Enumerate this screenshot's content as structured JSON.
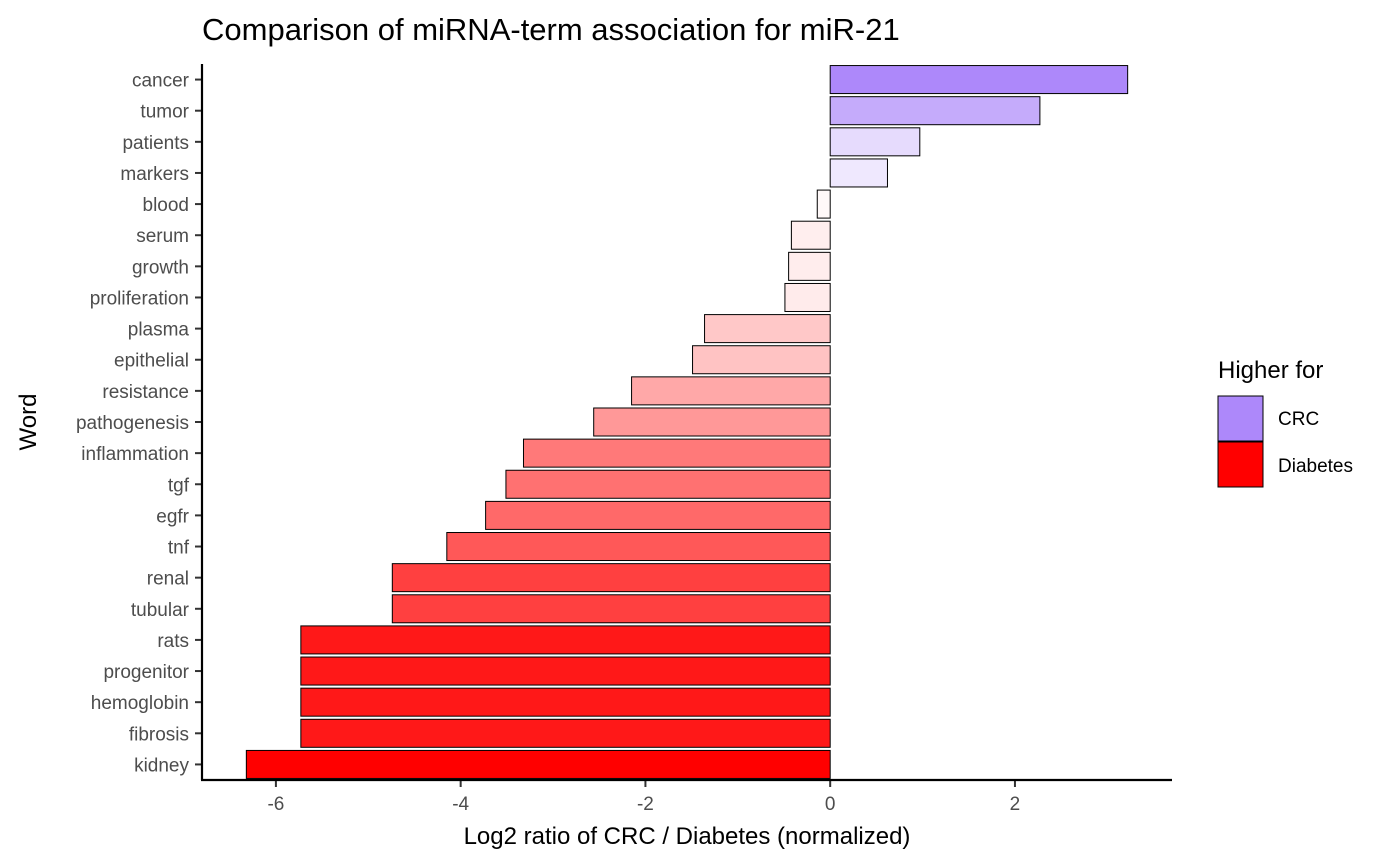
{
  "chart_data": {
    "type": "bar",
    "orientation": "horizontal",
    "title": "Comparison of miRNA-term association for miR-21",
    "xlabel": "Log2 ratio of CRC / Diabetes (normalized)",
    "ylabel": "Word",
    "categories": [
      "cancer",
      "tumor",
      "patients",
      "markers",
      "blood",
      "serum",
      "growth",
      "proliferation",
      "plasma",
      "epithelial",
      "resistance",
      "pathogenesis",
      "inflammation",
      "tgf",
      "egfr",
      "tnf",
      "renal",
      "tubular",
      "rats",
      "progenitor",
      "hemoglobin",
      "fibrosis",
      "kidney"
    ],
    "values": [
      3.22,
      2.27,
      0.97,
      0.62,
      -0.14,
      -0.42,
      -0.45,
      -0.49,
      -1.36,
      -1.49,
      -2.15,
      -2.56,
      -3.32,
      -3.51,
      -3.73,
      -4.15,
      -4.74,
      -4.74,
      -5.73,
      -5.73,
      -5.73,
      -5.73,
      -6.32
    ],
    "xlim": [
      -6.8,
      3.7
    ],
    "xticks": [
      -6,
      -4,
      -2,
      0,
      2
    ],
    "xtick_labels": [
      "-6",
      "-4",
      "-2",
      "0",
      "2"
    ],
    "grid": false,
    "fill_scale": {
      "low": "#ff0000",
      "mid": "#ffffff",
      "high": "#ad88fa",
      "low_value": -6.32,
      "high_value": 3.22
    },
    "legend": {
      "title": "Higher for",
      "position": "right",
      "items": [
        {
          "label": "CRC",
          "color": "#ad88fa"
        },
        {
          "label": "Diabetes",
          "color": "#ff0000"
        }
      ]
    }
  }
}
